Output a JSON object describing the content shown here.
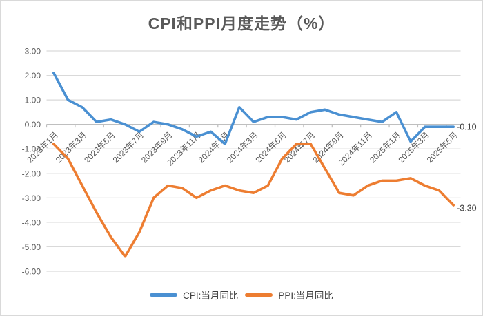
{
  "chart_data": {
    "type": "line",
    "title": "CPI和PPI月度走势（%）",
    "x_labels": [
      "2023年1月",
      "2023年3月",
      "2023年5月",
      "2023年7月",
      "2023年9月",
      "2023年11月",
      "2024年1月",
      "2024年3月",
      "2024年5月",
      "2024年7月",
      "2024年9月",
      "2024年11月",
      "2025年1月",
      "2025年3月",
      "2025年5月"
    ],
    "x_label_every": 2,
    "n_points": 29,
    "series": [
      {
        "name": "CPI:当月同比",
        "color": "#4A90D2",
        "values": [
          2.1,
          1.0,
          0.7,
          0.1,
          0.2,
          0.0,
          -0.3,
          0.1,
          0.0,
          -0.2,
          -0.5,
          -0.3,
          -0.8,
          0.7,
          0.1,
          0.3,
          0.3,
          0.2,
          0.5,
          0.6,
          0.4,
          0.3,
          0.2,
          0.1,
          0.5,
          -0.7,
          -0.1,
          -0.1,
          -0.1
        ],
        "end_label": "-0.10"
      },
      {
        "name": "PPI:当月同比",
        "color": "#ED7D31",
        "values": [
          -0.8,
          -1.4,
          -2.5,
          -3.6,
          -4.6,
          -5.4,
          -4.4,
          -3.0,
          -2.5,
          -2.6,
          -3.0,
          -2.7,
          -2.5,
          -2.7,
          -2.8,
          -2.5,
          -1.4,
          -0.8,
          -0.8,
          -1.8,
          -2.8,
          -2.9,
          -2.5,
          -2.3,
          -2.3,
          -2.2,
          -2.5,
          -2.7,
          -3.3
        ],
        "end_label": "-3.30"
      }
    ],
    "y_ticks": [
      "3.00",
      "2.00",
      "1.00",
      "0.00",
      "-1.00",
      "-2.00",
      "-3.00",
      "-4.00",
      "-5.00",
      "-6.00"
    ],
    "ylim": [
      -6,
      3
    ],
    "grid": true,
    "legend_position": "bottom",
    "colors": {
      "gridline": "#d9d9d9",
      "axis_line": "#bfbfbf",
      "tick_label": "#595959",
      "data_label": "#404040"
    }
  }
}
